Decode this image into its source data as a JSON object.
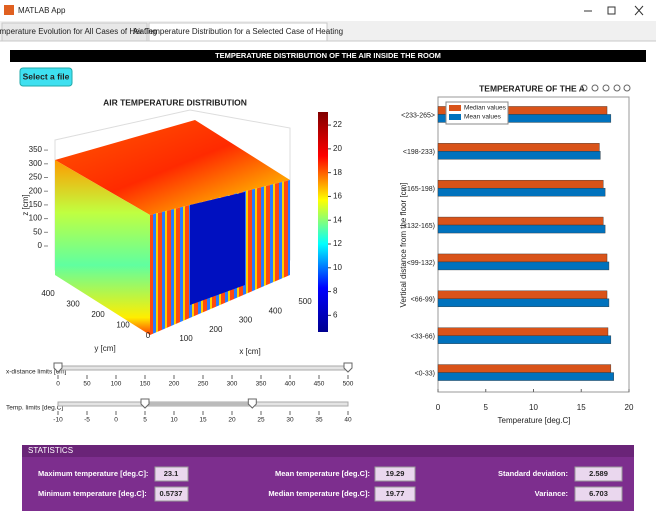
{
  "window": {
    "title": "MATLAB App"
  },
  "tabs": [
    "Temperature Evolution for All Cases of Heating",
    "Air Temperature Distribution for a Selected Case of Heating"
  ],
  "banner": "TEMPERATURE DISTRIBUTION OF THE AIR INSIDE THE ROOM",
  "button": "Select a file",
  "surface_plot": {
    "title": "AIR TEMPERATURE DISTRIBUTION",
    "x_label": "x [cm]",
    "y_label": "y [cm]",
    "z_label": "z [cm]",
    "xticks": [
      100,
      200,
      300,
      400,
      500
    ],
    "yticks": [
      0,
      100,
      200,
      300,
      400
    ],
    "zticks": [
      0,
      50,
      100,
      150,
      200,
      250,
      300,
      350
    ],
    "colorbar_ticks": [
      6,
      8,
      10,
      12,
      14,
      16,
      18,
      20,
      22
    ],
    "colorbar_lim": [
      4.6,
      23.1
    ],
    "colormap": [
      "#00008f",
      "#0000ff",
      "#00ffff",
      "#ffff00",
      "#ff0000",
      "#800000"
    ]
  },
  "sliders": [
    {
      "label": "x-distance limits [cm]",
      "ticks": [
        0,
        50,
        100,
        150,
        200,
        250,
        300,
        350,
        400,
        450,
        500
      ],
      "values": [
        0,
        500
      ]
    },
    {
      "label": "Temp. limits [deg.C]",
      "ticks": [
        -10,
        -5,
        0,
        5,
        10,
        15,
        20,
        25,
        30,
        35,
        40
      ],
      "values": [
        5,
        23.5
      ]
    }
  ],
  "chart_data": {
    "type": "bar",
    "orientation": "horizontal",
    "title": "TEMPERATURE OF THE A",
    "x_label": "Temperature [deg.C]",
    "y_label": "Vertical distance from the floor [cm]",
    "categories": [
      "<0-33)",
      "<33-66)",
      "<66-99)",
      "<99-132)",
      "<132-165)",
      "<165-198)",
      "<198-233)",
      "<233-265>"
    ],
    "series": [
      {
        "name": "Median values",
        "color": "#d95319",
        "values": [
          18.1,
          17.8,
          17.7,
          17.7,
          17.3,
          17.3,
          16.9,
          17.7
        ]
      },
      {
        "name": "Mean values",
        "color": "#0072bd",
        "values": [
          18.4,
          18.1,
          17.9,
          17.9,
          17.5,
          17.5,
          17.0,
          18.1
        ]
      }
    ],
    "xlim": [
      0,
      20
    ],
    "xticks": [
      0,
      5,
      10,
      15,
      20
    ],
    "legend": "upper left"
  },
  "statistics": {
    "title": "STATISTICS",
    "fields": [
      {
        "label": "Maximum temperature [deg.C]:",
        "value": "23.1"
      },
      {
        "label": "Minimum temperature [deg.C]:",
        "value": "0.5737"
      },
      {
        "label": "Mean temperature [deg.C]:",
        "value": "19.29"
      },
      {
        "label": "Median temperature [deg.C]:",
        "value": "19.77"
      },
      {
        "label": "Standard deviation:",
        "value": "2.589"
      },
      {
        "label": "Variance:",
        "value": "6.703"
      }
    ]
  }
}
